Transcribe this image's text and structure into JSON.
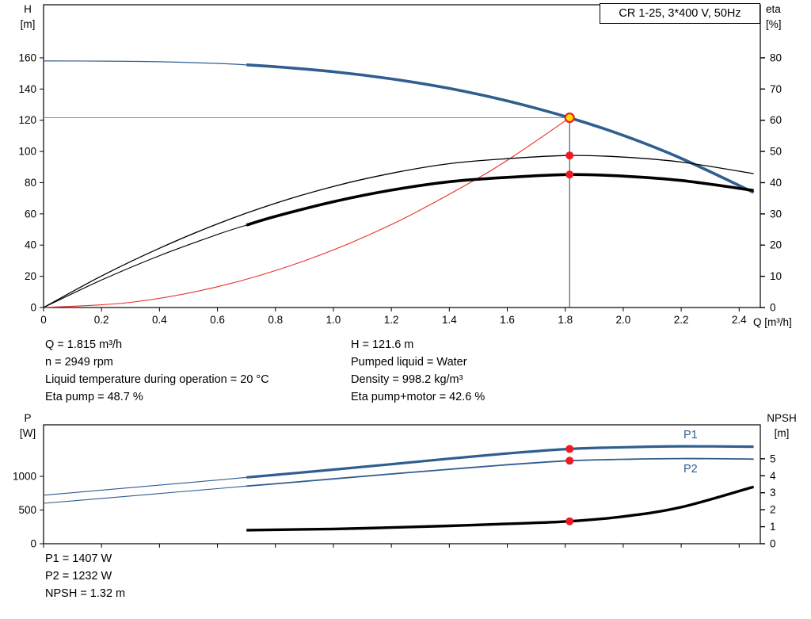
{
  "title_box": "CR 1-25, 3*400 V, 50Hz",
  "labels": {
    "h_axis": "H",
    "h_unit": "[m]",
    "eta_axis": "eta",
    "eta_unit": "[%]",
    "q_axis": "Q [m³/h]",
    "p_axis": "P",
    "p_unit": "[W]",
    "npsh_axis": "NPSH",
    "npsh_unit": "[m]",
    "p1": "P1",
    "p2": "P2"
  },
  "info_top": {
    "left": [
      "Q = 1.815 m³/h",
      "n = 2949 rpm",
      "Liquid temperature during operation = 20 °C",
      "Eta pump = 48.7 %"
    ],
    "right": [
      "H = 121.6 m",
      "Pumped liquid = Water",
      "Density = 998.2 kg/m³",
      "Eta pump+motor = 42.6 %"
    ]
  },
  "info_bottom": [
    "P1 = 1407 W",
    "P2 = 1232 W",
    "NPSH = 1.32 m"
  ],
  "colors": {
    "curve_blue": "#2f5e8f",
    "curve_black": "#000000",
    "curve_red": "#e63229",
    "marker_red": "#ed1c24",
    "marker_yellow": "#ffdf00",
    "ref_gray": "#8c8c8c",
    "ref_dark": "#3c3c3c",
    "axis_black": "#000000"
  },
  "chart_data": [
    {
      "type": "line",
      "title": "CR 1-25, 3*400 V, 50Hz",
      "xlabel": "Q [m³/h]",
      "ylabel_left": "H [m]",
      "ylabel_right": "eta [%]",
      "xlim": [
        0,
        2.473
      ],
      "ylim_left": [
        0,
        194
      ],
      "ylim_right": [
        0,
        97
      ],
      "x_ticks": [
        [
          0,
          "0"
        ],
        [
          0.2,
          "0.2"
        ],
        [
          0.4,
          "0.4"
        ],
        [
          0.6,
          "0.6"
        ],
        [
          0.8,
          "0.8"
        ],
        [
          1,
          "1.0"
        ],
        [
          1.2,
          "1.2"
        ],
        [
          1.4,
          "1.4"
        ],
        [
          1.6,
          "1.6"
        ],
        [
          1.8,
          "1.8"
        ],
        [
          2,
          "2.0"
        ],
        [
          2.2,
          "2.2"
        ],
        [
          2.4,
          "2.4"
        ]
      ],
      "y_ticks_left": [
        [
          0,
          "0"
        ],
        [
          20,
          "20"
        ],
        [
          40,
          "40"
        ],
        [
          60,
          "60"
        ],
        [
          80,
          "80"
        ],
        [
          100,
          "100"
        ],
        [
          120,
          "120"
        ],
        [
          140,
          "140"
        ],
        [
          160,
          "160"
        ]
      ],
      "y_ticks_right": [
        [
          0,
          "0"
        ],
        [
          10,
          "10"
        ],
        [
          20,
          "20"
        ],
        [
          30,
          "30"
        ],
        [
          40,
          "40"
        ],
        [
          50,
          "50"
        ],
        [
          60,
          "60"
        ],
        [
          70,
          "70"
        ],
        [
          80,
          "80"
        ]
      ],
      "series": [
        {
          "name": "system-curve",
          "axis": "left",
          "color": "curve_red",
          "segments": [
            {
              "width": 1.1,
              "from": 0,
              "to": 1.815
            }
          ],
          "points": [
            [
              0,
              0
            ],
            [
              0.3,
              3.3
            ],
            [
              0.6,
              13.3
            ],
            [
              0.9,
              29.9
            ],
            [
              1.2,
              53.1
            ],
            [
              1.5,
              83.0
            ],
            [
              1.65,
              100.5
            ],
            [
              1.815,
              121.6
            ]
          ]
        },
        {
          "name": "head",
          "axis": "left",
          "color": "curve_blue",
          "segments": [
            {
              "width": 1.2,
              "from": 0,
              "to": 0.7
            },
            {
              "width": 3.6,
              "from": 0.7,
              "to": 2.45
            }
          ],
          "points": [
            [
              0,
              158
            ],
            [
              0.2,
              157.9
            ],
            [
              0.4,
              157.5
            ],
            [
              0.6,
              156.4
            ],
            [
              0.7,
              155.5
            ],
            [
              0.8,
              154.3
            ],
            [
              1.0,
              151.1
            ],
            [
              1.2,
              146.5
            ],
            [
              1.4,
              140.4
            ],
            [
              1.6,
              132.4
            ],
            [
              1.815,
              121.6
            ],
            [
              2.0,
              110.3
            ],
            [
              2.2,
              95.6
            ],
            [
              2.45,
              73.7
            ]
          ]
        },
        {
          "name": "eta-pump",
          "axis": "right",
          "color": "curve_black",
          "segments": [
            {
              "width": 1.3,
              "from": 0,
              "to": 2.45
            }
          ],
          "points": [
            [
              0,
              0
            ],
            [
              0.2,
              10.1
            ],
            [
              0.4,
              19.0
            ],
            [
              0.6,
              26.8
            ],
            [
              0.8,
              33.4
            ],
            [
              1.0,
              38.8
            ],
            [
              1.2,
              43.0
            ],
            [
              1.4,
              46.1
            ],
            [
              1.6,
              47.7
            ],
            [
              1.815,
              48.7
            ],
            [
              2.0,
              48.2
            ],
            [
              2.2,
              46.6
            ],
            [
              2.45,
              42.9
            ]
          ]
        },
        {
          "name": "eta-pump-motor",
          "axis": "right",
          "color": "curve_black",
          "segments": [
            {
              "width": 1.1,
              "from": 0,
              "to": 0.7
            },
            {
              "width": 3.6,
              "from": 0.7,
              "to": 2.45
            }
          ],
          "points": [
            [
              0,
              0
            ],
            [
              0.2,
              8.8
            ],
            [
              0.4,
              16.6
            ],
            [
              0.6,
              23.4
            ],
            [
              0.7,
              26.4
            ],
            [
              0.8,
              29.2
            ],
            [
              1.0,
              33.9
            ],
            [
              1.2,
              37.6
            ],
            [
              1.4,
              40.3
            ],
            [
              1.6,
              41.7
            ],
            [
              1.815,
              42.6
            ],
            [
              2.0,
              42.1
            ],
            [
              2.2,
              40.7
            ],
            [
              2.45,
              37.5
            ]
          ]
        }
      ],
      "ref_lines": [
        {
          "name": "duty-head-line",
          "type": "h",
          "axis": "left",
          "v": 121.6,
          "q_from": 0,
          "q_to": 1.815,
          "color": "ref_gray",
          "width": 1
        },
        {
          "name": "duty-flow-line",
          "type": "v",
          "axis": "left",
          "q": 1.815,
          "v_from": 0,
          "v_to": 121.6,
          "color": "ref_dark",
          "width": 1
        }
      ],
      "markers": [
        {
          "name": "duty-point",
          "style": "duty",
          "axis": "left",
          "q": 1.815,
          "v": 121.6
        },
        {
          "name": "eta-pump-point",
          "style": "red",
          "axis": "right",
          "q": 1.815,
          "v": 48.7
        },
        {
          "name": "eta-pump-motor-point",
          "style": "red",
          "axis": "right",
          "q": 1.815,
          "v": 42.6
        }
      ]
    },
    {
      "type": "line",
      "xlabel": "Q [m³/h]",
      "ylabel_left": "P [W]",
      "ylabel_right": "NPSH [m]",
      "xlim": [
        0,
        2.473
      ],
      "ylim_left": [
        0,
        1765
      ],
      "ylim_right": [
        0,
        7
      ],
      "x_ticks": [
        [
          0,
          ""
        ],
        [
          0.2,
          ""
        ],
        [
          0.4,
          ""
        ],
        [
          0.6,
          ""
        ],
        [
          0.8,
          ""
        ],
        [
          1,
          ""
        ],
        [
          1.2,
          ""
        ],
        [
          1.4,
          ""
        ],
        [
          1.6,
          ""
        ],
        [
          1.8,
          ""
        ],
        [
          2,
          ""
        ],
        [
          2.2,
          ""
        ],
        [
          2.4,
          ""
        ]
      ],
      "y_ticks_left": [
        [
          0,
          "0"
        ],
        [
          500,
          "500"
        ],
        [
          1000,
          "1000"
        ]
      ],
      "y_ticks_right": [
        [
          0,
          "0"
        ],
        [
          1,
          "1"
        ],
        [
          2,
          "2"
        ],
        [
          3,
          "3"
        ],
        [
          4,
          "4"
        ],
        [
          5,
          "5"
        ]
      ],
      "series": [
        {
          "name": "p1",
          "axis": "left",
          "color": "curve_blue",
          "segments": [
            {
              "width": 1.1,
              "from": 0,
              "to": 0.7
            },
            {
              "width": 3.2,
              "from": 0.7,
              "to": 2.45
            }
          ],
          "points": [
            [
              0,
              720
            ],
            [
              0.2,
              795
            ],
            [
              0.4,
              870
            ],
            [
              0.6,
              945
            ],
            [
              0.7,
              985
            ],
            [
              0.8,
              1022
            ],
            [
              1.0,
              1100
            ],
            [
              1.2,
              1180
            ],
            [
              1.4,
              1262
            ],
            [
              1.6,
              1340
            ],
            [
              1.815,
              1407
            ],
            [
              2.0,
              1432
            ],
            [
              2.2,
              1446
            ],
            [
              2.45,
              1440
            ]
          ]
        },
        {
          "name": "p2",
          "axis": "left",
          "color": "curve_blue",
          "segments": [
            {
              "width": 1.1,
              "from": 0,
              "to": 0.7
            },
            {
              "width": 1.8,
              "from": 0.7,
              "to": 2.45
            }
          ],
          "points": [
            [
              0,
              600
            ],
            [
              0.2,
              672
            ],
            [
              0.4,
              745
            ],
            [
              0.6,
              818
            ],
            [
              0.7,
              855
            ],
            [
              0.8,
              890
            ],
            [
              1.0,
              962
            ],
            [
              1.2,
              1035
            ],
            [
              1.4,
              1105
            ],
            [
              1.6,
              1172
            ],
            [
              1.815,
              1232
            ],
            [
              2.0,
              1253
            ],
            [
              2.2,
              1264
            ],
            [
              2.45,
              1256
            ]
          ]
        },
        {
          "name": "npsh",
          "axis": "right",
          "color": "curve_black",
          "segments": [
            {
              "width": 3.4,
              "from": 0.7,
              "to": 2.45
            }
          ],
          "points": [
            [
              0.7,
              0.8
            ],
            [
              1.0,
              0.87
            ],
            [
              1.2,
              0.95
            ],
            [
              1.4,
              1.05
            ],
            [
              1.6,
              1.17
            ],
            [
              1.815,
              1.32
            ],
            [
              2.0,
              1.6
            ],
            [
              2.2,
              2.15
            ],
            [
              2.45,
              3.35
            ]
          ]
        }
      ],
      "ref_lines": [],
      "markers": [
        {
          "name": "p1-point",
          "style": "red",
          "axis": "left",
          "q": 1.815,
          "v": 1407
        },
        {
          "name": "p2-point",
          "style": "red",
          "axis": "left",
          "q": 1.815,
          "v": 1232
        },
        {
          "name": "npsh-point",
          "style": "red",
          "axis": "right",
          "q": 1.815,
          "v": 1.32
        }
      ]
    }
  ]
}
